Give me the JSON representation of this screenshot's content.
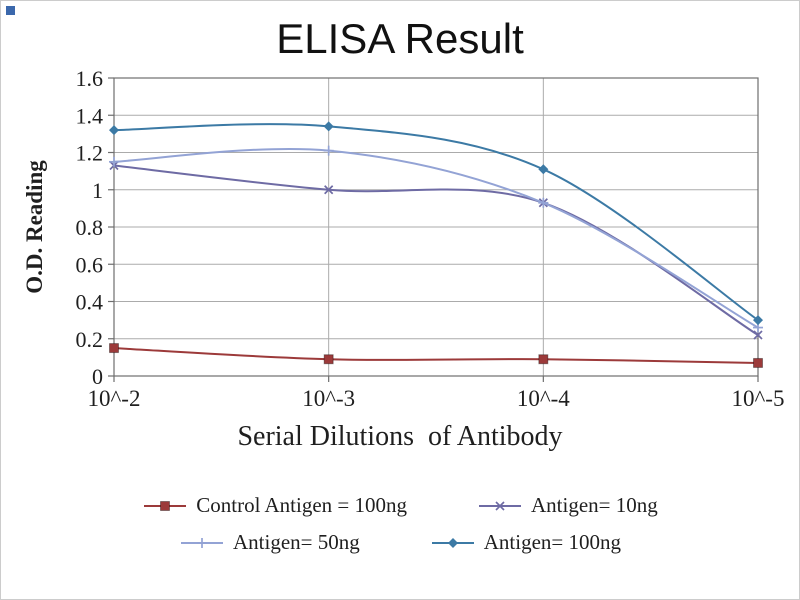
{
  "chart_data": {
    "type": "line",
    "title": "ELISA Result",
    "xlabel": "Serial Dilutions  of Antibody",
    "ylabel": "O.D. Reading",
    "categories": [
      "10^-2",
      "10^-3",
      "10^-4",
      "10^-5"
    ],
    "yticks": [
      "0",
      "0.2",
      "0.4",
      "0.6",
      "0.8",
      "1",
      "1.2",
      "1.4",
      "1.6"
    ],
    "ylim": [
      0,
      1.6
    ],
    "grid": true,
    "legend_position": "bottom",
    "series": [
      {
        "name": "Control Antigen = 100ng",
        "marker": "square",
        "color": "#9C3A3A",
        "values": [
          0.15,
          0.09,
          0.09,
          0.07
        ]
      },
      {
        "name": "Antigen= 10ng",
        "marker": "x",
        "color": "#6E6BA4",
        "values": [
          1.13,
          1.0,
          0.93,
          0.22
        ]
      },
      {
        "name": "Antigen= 50ng",
        "marker": "plus",
        "color": "#93A3D5",
        "values": [
          1.15,
          1.21,
          0.93,
          0.26
        ]
      },
      {
        "name": "Antigen= 100ng",
        "marker": "diamond",
        "color": "#3C7AA5",
        "values": [
          1.32,
          1.34,
          1.11,
          0.3
        ]
      }
    ],
    "colors": {
      "grid": "#ABABAB",
      "axis": "#6E6E6E",
      "text": "#1F1F1F"
    }
  },
  "corner_mark_color": "#3B68AC"
}
